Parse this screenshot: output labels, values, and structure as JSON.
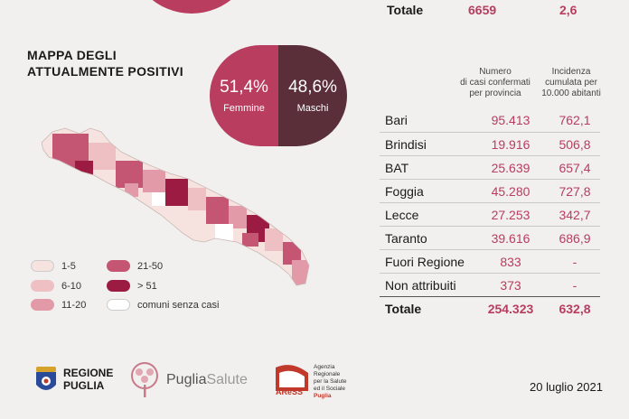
{
  "top_summary": {
    "label": "Totale",
    "cases": "6659",
    "incidence": "2,6"
  },
  "map": {
    "title_line1": "MAPPA DEGLI",
    "title_line2": "ATTUALMENTE POSITIVI"
  },
  "gender": {
    "female": {
      "pct": "51,4%",
      "label": "Femmine",
      "color": "#b83d5f"
    },
    "male": {
      "pct": "48,6%",
      "label": "Maschi",
      "color": "#5a2f3a"
    }
  },
  "table": {
    "col_cases_line1": "Numero",
    "col_cases_line2": "di casi confermati",
    "col_cases_line3": "per provincia",
    "col_inc_line1": "Incidenza",
    "col_inc_line2": "cumulata per",
    "col_inc_line3": "10.000 abitanti",
    "rows": [
      {
        "province": "Bari",
        "cases": "95.413",
        "incidence": "762,1"
      },
      {
        "province": "Brindisi",
        "cases": "19.916",
        "incidence": "506,8"
      },
      {
        "province": "BAT",
        "cases": "25.639",
        "incidence": "657,4"
      },
      {
        "province": "Foggia",
        "cases": "45.280",
        "incidence": "727,8"
      },
      {
        "province": "Lecce",
        "cases": "27.253",
        "incidence": "342,7"
      },
      {
        "province": "Taranto",
        "cases": "39.616",
        "incidence": "686,9"
      },
      {
        "province": "Fuori Regione",
        "cases": "833",
        "incidence": "-"
      },
      {
        "province": "Non attribuiti",
        "cases": "373",
        "incidence": "-"
      }
    ],
    "total": {
      "province": "Totale",
      "cases": "254.323",
      "incidence": "632,8"
    }
  },
  "legend": {
    "items": [
      {
        "label": "1-5",
        "color": "#f6e3df"
      },
      {
        "label": "6-10",
        "color": "#eec0c4"
      },
      {
        "label": "11-20",
        "color": "#e39aa8"
      },
      {
        "label": "21-50",
        "color": "#c45674"
      },
      {
        "label": "> 51",
        "color": "#9c1b42"
      },
      {
        "label": "comuni senza casi",
        "color": "#ffffff"
      }
    ]
  },
  "footer": {
    "date": "20 luglio 2021",
    "logo_rp_line1": "REGIONE",
    "logo_rp_line2": "PUGLIA",
    "logo_ps_a": "Puglia",
    "logo_ps_b": "Salute",
    "logo_ares": "AReSS",
    "ares_line1": "Agenzia",
    "ares_line2": "Regionale",
    "ares_line3": "per la Salute",
    "ares_line4": "ed il Sociale",
    "ares_line5": "Puglia"
  }
}
